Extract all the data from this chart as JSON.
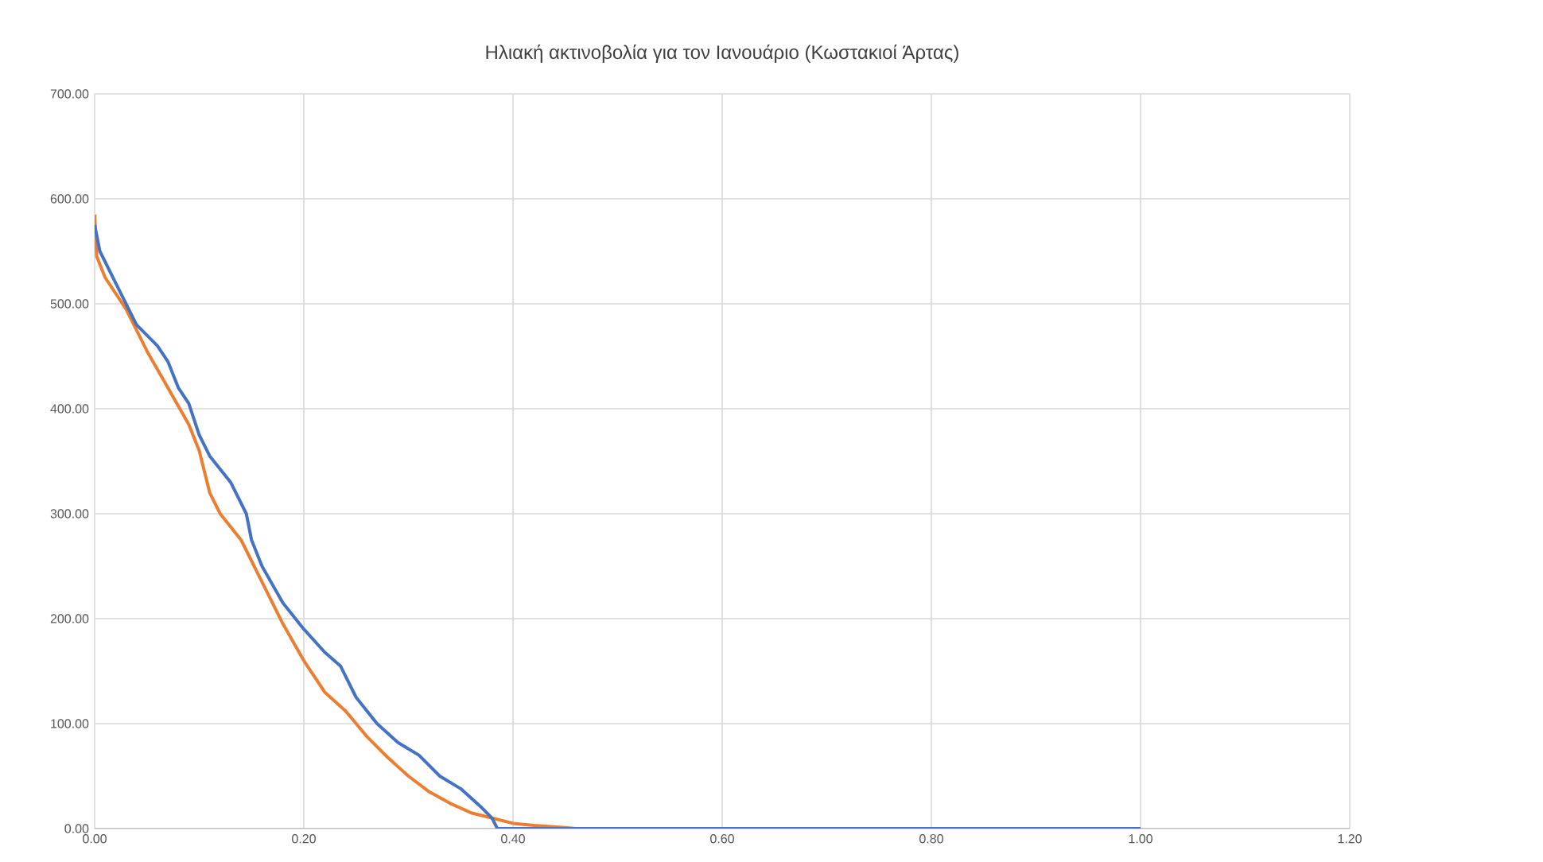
{
  "chart_data": {
    "type": "line",
    "title": "Ηλιακή ακτινοβολία για τον Ιανουάριο (Κωστακιοί Άρτας)",
    "xlim": [
      0,
      1.2
    ],
    "ylim": [
      0,
      700
    ],
    "xticks": [
      {
        "value": 0,
        "label": "0.00"
      },
      {
        "value": 0.2,
        "label": "0.20"
      },
      {
        "value": 0.4,
        "label": "0.40"
      },
      {
        "value": 0.6,
        "label": "0.60"
      },
      {
        "value": 0.8,
        "label": "0.80"
      },
      {
        "value": 1.0,
        "label": "1.00"
      },
      {
        "value": 1.2,
        "label": "1.20"
      }
    ],
    "yticks": [
      {
        "value": 0,
        "label": "0.00"
      },
      {
        "value": 100,
        "label": "100.00"
      },
      {
        "value": 200,
        "label": "200.00"
      },
      {
        "value": 300,
        "label": "300.00"
      },
      {
        "value": 400,
        "label": "400.00"
      },
      {
        "value": 500,
        "label": "500.00"
      },
      {
        "value": 600,
        "label": "600.00"
      },
      {
        "value": 700,
        "label": "700.00"
      }
    ],
    "grid": true,
    "marker": "none",
    "line_style": "solid",
    "series": [
      {
        "color": "#ed7d31",
        "x": [
          0,
          0.002,
          0.01,
          0.03,
          0.05,
          0.07,
          0.09,
          0.1,
          0.11,
          0.12,
          0.14,
          0.16,
          0.18,
          0.2,
          0.22,
          0.24,
          0.26,
          0.28,
          0.3,
          0.32,
          0.34,
          0.36,
          0.38,
          0.4,
          0.42,
          0.45,
          0.46,
          1.0
        ],
        "values": [
          585,
          545,
          525,
          495,
          455,
          420,
          385,
          360,
          320,
          300,
          275,
          235,
          195,
          160,
          130,
          112,
          88,
          68,
          50,
          35,
          24,
          15,
          10,
          5,
          3,
          1,
          0,
          0
        ]
      },
      {
        "color": "#4472c4",
        "x": [
          0,
          0.005,
          0.02,
          0.04,
          0.06,
          0.07,
          0.08,
          0.09,
          0.1,
          0.11,
          0.13,
          0.145,
          0.15,
          0.16,
          0.18,
          0.2,
          0.22,
          0.235,
          0.25,
          0.27,
          0.29,
          0.31,
          0.33,
          0.35,
          0.37,
          0.38,
          0.385,
          1.0
        ],
        "values": [
          575,
          550,
          520,
          480,
          460,
          445,
          420,
          405,
          375,
          355,
          330,
          300,
          275,
          250,
          215,
          190,
          168,
          155,
          125,
          100,
          82,
          70,
          50,
          38,
          20,
          10,
          0,
          0
        ]
      }
    ]
  }
}
